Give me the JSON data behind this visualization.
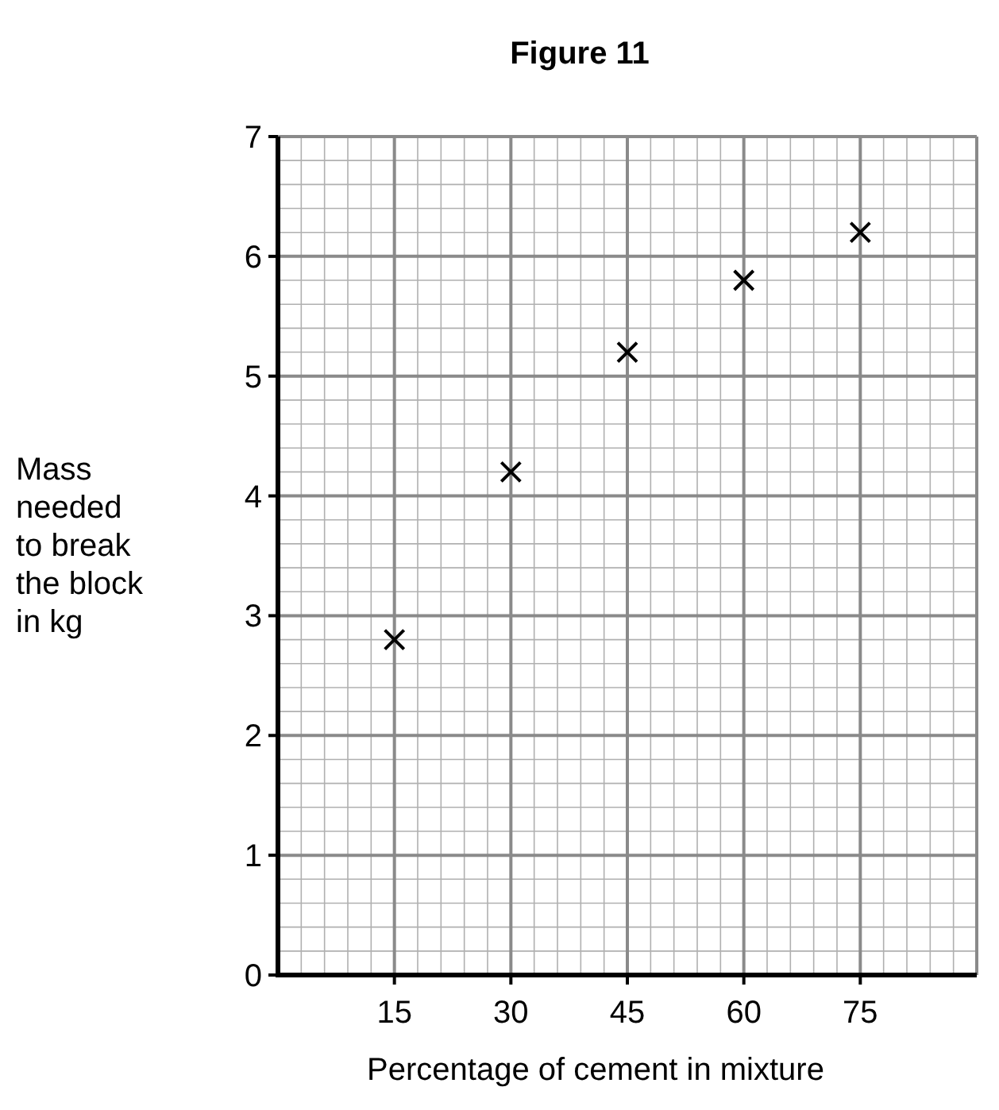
{
  "chart_data": {
    "type": "scatter",
    "title": "Figure 11",
    "xlabel": "Percentage of cement in mixture",
    "ylabel": "Mass needed to break the block in kg",
    "x": [
      15,
      30,
      45,
      60,
      75
    ],
    "values": [
      2.8,
      4.2,
      5.2,
      5.8,
      6.2
    ],
    "color": "#000000",
    "marker": "cross",
    "xlim": [
      0,
      90
    ],
    "xticks": [
      15,
      30,
      45,
      60,
      75
    ],
    "ylim": [
      0,
      7
    ],
    "yticks": [
      0,
      1,
      2,
      3,
      4,
      5,
      6,
      7
    ],
    "grid": true
  }
}
